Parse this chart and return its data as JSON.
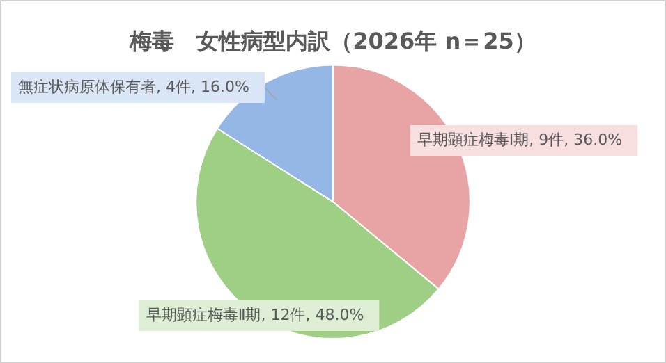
{
  "chart_data": {
    "type": "pie",
    "title": "梅毒　女性病型内訳（2026年 n＝25）",
    "categories": [
      "早期顕症梅毒Ⅰ期",
      "早期顕症梅毒Ⅱ期",
      "無症状病原体保有者"
    ],
    "values": [
      9,
      12,
      4
    ],
    "value_labels": [
      "9件, 36.0%",
      "12件, 48.0%",
      "4件, 16.0%"
    ],
    "colors": [
      "#e8a4a4",
      "#9fcf85",
      "#94b7e6"
    ],
    "legend": false
  }
}
